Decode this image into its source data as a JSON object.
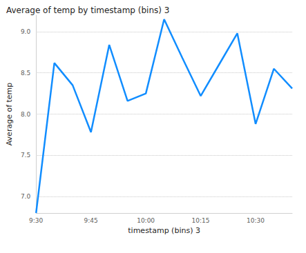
{
  "chart_data": {
    "type": "line",
    "title": "Average of temp by timestamp (bins) 3",
    "x_label": "timestamp (bins) 3",
    "y_label": "Average of temp",
    "categories": [
      "9:30",
      null,
      null,
      "9:45",
      null,
      null,
      "10:00",
      null,
      null,
      "10:15",
      null,
      null,
      "10:30",
      null,
      null
    ],
    "values": [
      6.8,
      8.62,
      8.35,
      7.78,
      8.84,
      8.16,
      8.25,
      9.15,
      8.68,
      8.22,
      8.6,
      8.98,
      7.88,
      8.55,
      8.31
    ],
    "color": "#118DFF",
    "ylim": [
      6.8,
      9.2
    ],
    "yticks": [
      {
        "value": 7,
        "label": "7.0"
      },
      7.5,
      {
        "value": 8,
        "label": "8.0"
      },
      8.5,
      {
        "value": 9,
        "label": "9.0"
      }
    ],
    "grid": true
  }
}
